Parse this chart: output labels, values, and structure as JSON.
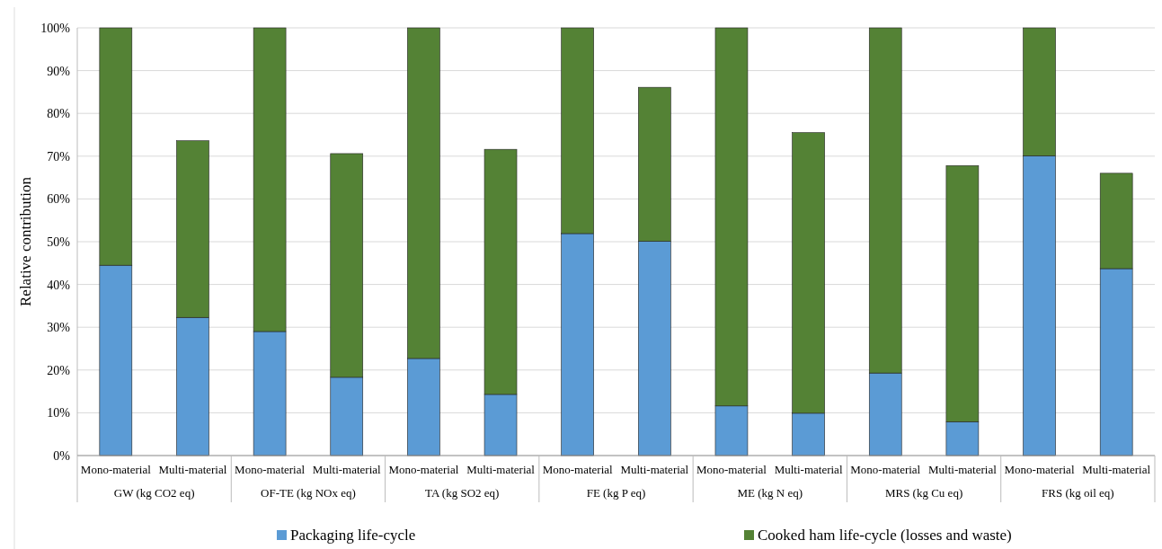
{
  "chart_data": {
    "type": "bar",
    "stacked": true,
    "ylabel": "Relative contribution",
    "categories": [
      "Mono-material",
      "Multi-material",
      "Mono-material",
      "Multi-material",
      "Mono-material",
      "Multi-material",
      "Mono-material",
      "Multi-material",
      "Mono-material",
      "Multi-material",
      "Mono-material",
      "Multi-material",
      "Mono-material",
      "Multi-material"
    ],
    "annotations": [
      "GW (kg CO2 eq)",
      "OF-TE (kg NOx eq)",
      "TA (kg SO2 eq)",
      "FE (kg P eq)",
      "ME (kg N eq)",
      "MRS (kg Cu eq)",
      "FRS (kg oil eq)"
    ],
    "series": [
      {
        "name": "Packaging life-cycle",
        "color": "#5b9bd5",
        "values": [
          44.5,
          32.3,
          29.0,
          18.3,
          22.7,
          14.3,
          51.9,
          50.1,
          11.6,
          9.9,
          19.3,
          7.9,
          70.1,
          43.7
        ]
      },
      {
        "name": "Cooked ham life-cycle (losses and waste)",
        "color": "#548235",
        "values": [
          55.5,
          41.3,
          71.0,
          52.3,
          77.3,
          57.3,
          48.1,
          36.0,
          88.4,
          65.6,
          80.7,
          59.9,
          29.9,
          22.3
        ]
      }
    ],
    "ylim": [
      0,
      100
    ],
    "yticks": [
      {
        "value": 0,
        "label": "0%"
      },
      {
        "value": 10,
        "label": "10%"
      },
      {
        "value": 20,
        "label": "20%"
      },
      {
        "value": 30,
        "label": "30%"
      },
      {
        "value": 40,
        "label": "40%"
      },
      {
        "value": 50,
        "label": "50%"
      },
      {
        "value": 60,
        "label": "60%"
      },
      {
        "value": 70,
        "label": "70%"
      },
      {
        "value": 80,
        "label": "80%"
      },
      {
        "value": 90,
        "label": "90%"
      },
      {
        "value": 100,
        "label": "100%"
      }
    ],
    "grid": "y",
    "legend": "bottom"
  }
}
